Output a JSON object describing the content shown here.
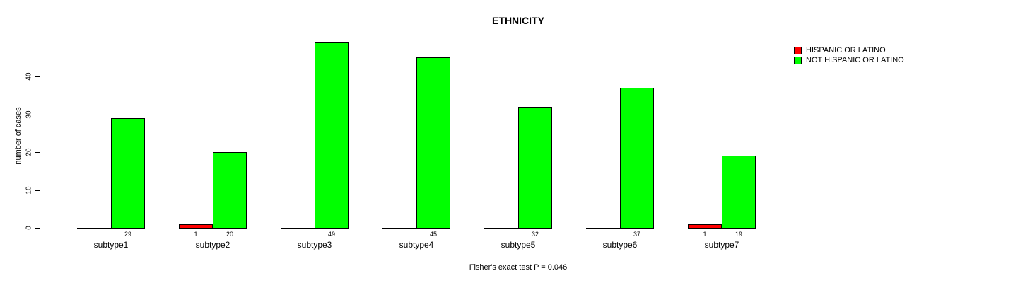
{
  "chart_data": {
    "type": "bar",
    "bar_mode": "grouped",
    "title": "ETHNICITY",
    "xlabel": "",
    "ylabel": "number of cases",
    "categories": [
      "subtype1",
      "subtype2",
      "subtype3",
      "subtype4",
      "subtype5",
      "subtype6",
      "subtype7"
    ],
    "series": [
      {
        "name": "HISPANIC OR LATINO",
        "color": "#ff0000",
        "values": [
          0,
          1,
          0,
          0,
          0,
          0,
          1
        ]
      },
      {
        "name": "NOT HISPANIC OR LATINO",
        "color": "#00ff00",
        "values": [
          29,
          20,
          49,
          45,
          32,
          37,
          19
        ]
      }
    ],
    "bar_value_labels_visible": "only nonzero values, printed under each bar",
    "yticks": [
      0,
      10,
      20,
      30,
      40
    ],
    "ylim": [
      0,
      49
    ],
    "grid": false,
    "legend_position": "top-right",
    "annotation": "Fisher's exact test P = 0.046",
    "colors": {
      "background": "#ffffff",
      "bar_outline": "#000000",
      "text": "#000000"
    }
  }
}
